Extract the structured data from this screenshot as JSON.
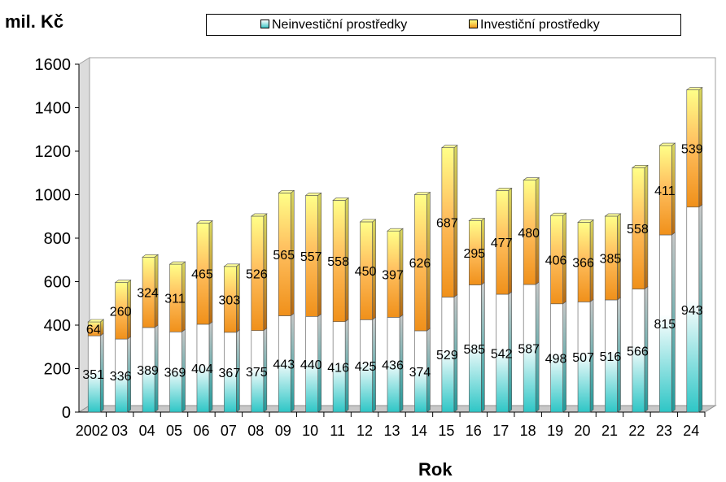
{
  "unit_label": "mil. Kč",
  "legend": {
    "noninvestment": "Neinvestiční prostředky",
    "investment": "Investiční prostředky"
  },
  "colors": {
    "noninv_top": "#ffffff",
    "noninv_bottom": "#2ec6c6",
    "inv_top": "#ffff88",
    "inv_bottom": "#f0901a",
    "wall": "#ffffff",
    "wall_side": "#d8d8d8"
  },
  "chart_data": {
    "type": "bar",
    "stacked": true,
    "title": "",
    "xlabel": "Rok",
    "ylabel": "mil. Kč",
    "ylim": [
      0,
      1600
    ],
    "yticks": [
      0,
      200,
      400,
      600,
      800,
      1000,
      1200,
      1400,
      1600
    ],
    "categories": [
      "2002",
      "03",
      "04",
      "05",
      "06",
      "07",
      "08",
      "09",
      "10",
      "11",
      "12",
      "13",
      "14",
      "15",
      "16",
      "17",
      "18",
      "19",
      "20",
      "21",
      "22",
      "23",
      "24"
    ],
    "series": [
      {
        "name": "Neinvestiční prostředky",
        "values": [
          351,
          336,
          389,
          369,
          404,
          367,
          375,
          443,
          440,
          416,
          425,
          436,
          374,
          529,
          585,
          542,
          587,
          498,
          507,
          516,
          566,
          815,
          943
        ]
      },
      {
        "name": "Investiční prostředky",
        "values": [
          64,
          260,
          324,
          311,
          465,
          303,
          526,
          565,
          557,
          558,
          450,
          397,
          626,
          687,
          295,
          477,
          480,
          406,
          366,
          385,
          558,
          411,
          539
        ]
      }
    ],
    "legend_position": "top"
  }
}
